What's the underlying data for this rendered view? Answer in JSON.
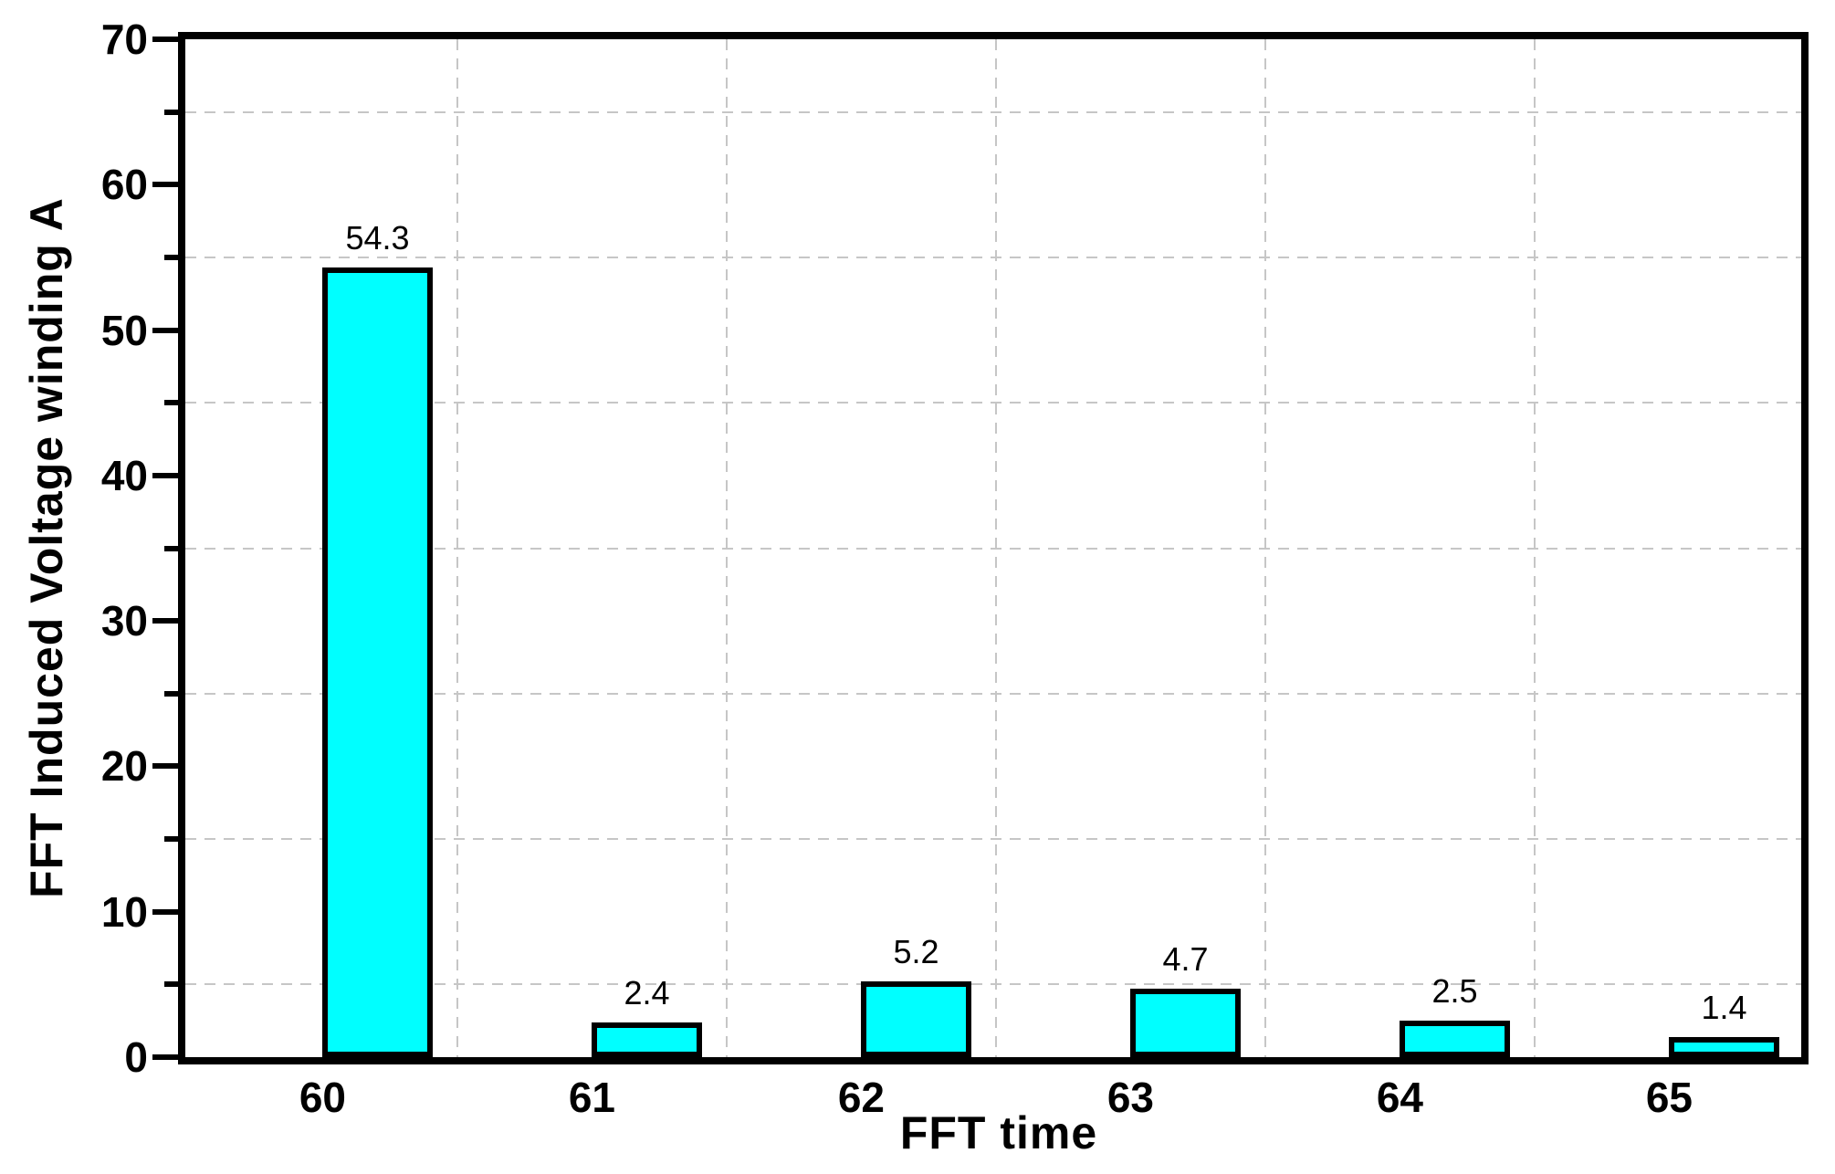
{
  "figure": {
    "background": "#ffffff"
  },
  "chart_data": {
    "type": "bar",
    "title": "",
    "xlabel": "FFT time",
    "ylabel": "FFT Induced Voltage winding A",
    "categories": [
      "60",
      "61",
      "62",
      "63",
      "64",
      "65"
    ],
    "x_numeric": [
      60,
      61,
      62,
      63,
      64,
      65
    ],
    "values": [
      54.3,
      2.4,
      5.2,
      4.7,
      2.5,
      1.4
    ],
    "bar_labels": [
      "54.3",
      "2.4",
      "5.2",
      "4.7",
      "2.5",
      "1.4"
    ],
    "xlim": [
      59.49,
      65.49
    ],
    "ylim": [
      0,
      70
    ],
    "yticks_major": [
      0,
      10,
      20,
      30,
      40,
      50,
      60,
      70
    ],
    "ytick_labels": [
      "0",
      "10",
      "20",
      "30",
      "40",
      "50",
      "60",
      "70"
    ],
    "yticks_minor": [
      5,
      15,
      25,
      35,
      45,
      55,
      65
    ],
    "grid": {
      "style": "dashed",
      "color": "#c6c6c6",
      "horizontal_values": [
        5,
        15,
        25,
        35,
        45,
        55,
        65
      ],
      "vertical_values": [
        60.5,
        61.5,
        62.5,
        63.5,
        64.5
      ]
    },
    "colors": {
      "bar_fill": "#00ffff",
      "bar_border": "#000000",
      "axis": "#000000",
      "text": "#000000",
      "background": "#ffffff"
    },
    "bar_geometry": {
      "align": "left-edge-at-x",
      "width_fraction": 0.41
    },
    "legend": null,
    "grid_on": true
  }
}
